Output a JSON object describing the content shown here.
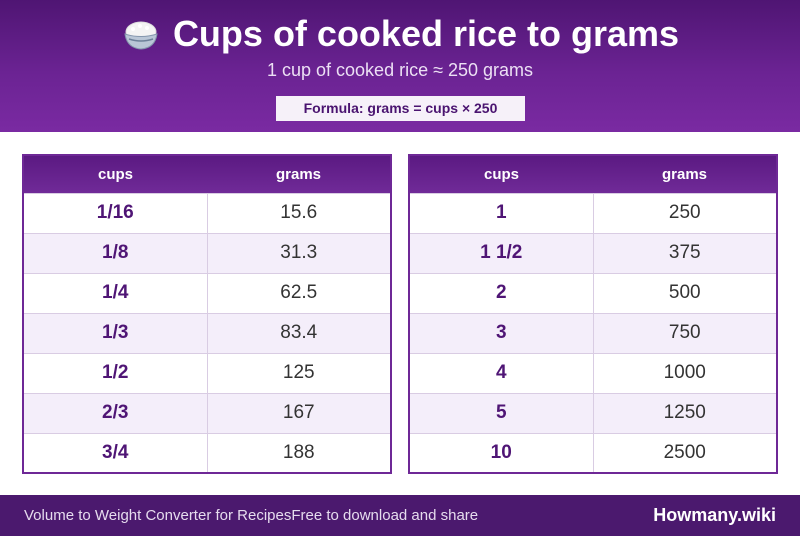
{
  "header": {
    "title": "Cups of cooked rice to grams",
    "title_icon": "rice-bowl-icon",
    "subtitle": "1 cup of cooked rice ≈ 250 grams",
    "formula": "Formula: grams = cups × 250"
  },
  "tables": [
    {
      "columns": [
        "cups",
        "grams"
      ],
      "rows": [
        {
          "cups": "1/16",
          "grams": "15.6"
        },
        {
          "cups": "1/8",
          "grams": "31.3"
        },
        {
          "cups": "1/4",
          "grams": "62.5"
        },
        {
          "cups": "1/3",
          "grams": "83.4"
        },
        {
          "cups": "1/2",
          "grams": "125"
        },
        {
          "cups": "2/3",
          "grams": "167"
        },
        {
          "cups": "3/4",
          "grams": "188"
        }
      ]
    },
    {
      "columns": [
        "cups",
        "grams"
      ],
      "rows": [
        {
          "cups": "1",
          "grams": "250"
        },
        {
          "cups": "1 1/2",
          "grams": "375"
        },
        {
          "cups": "2",
          "grams": "500"
        },
        {
          "cups": "3",
          "grams": "750"
        },
        {
          "cups": "4",
          "grams": "1000"
        },
        {
          "cups": "5",
          "grams": "1250"
        },
        {
          "cups": "10",
          "grams": "2500"
        }
      ]
    }
  ],
  "footer": {
    "left_text": "Volume to Weight Converter for RecipesFree to download and share",
    "brand": "Howmany.wiki"
  },
  "colors": {
    "header_purple": "#6b2393",
    "accent_text": "#4f1575",
    "footer_bg": "#4b196e"
  }
}
